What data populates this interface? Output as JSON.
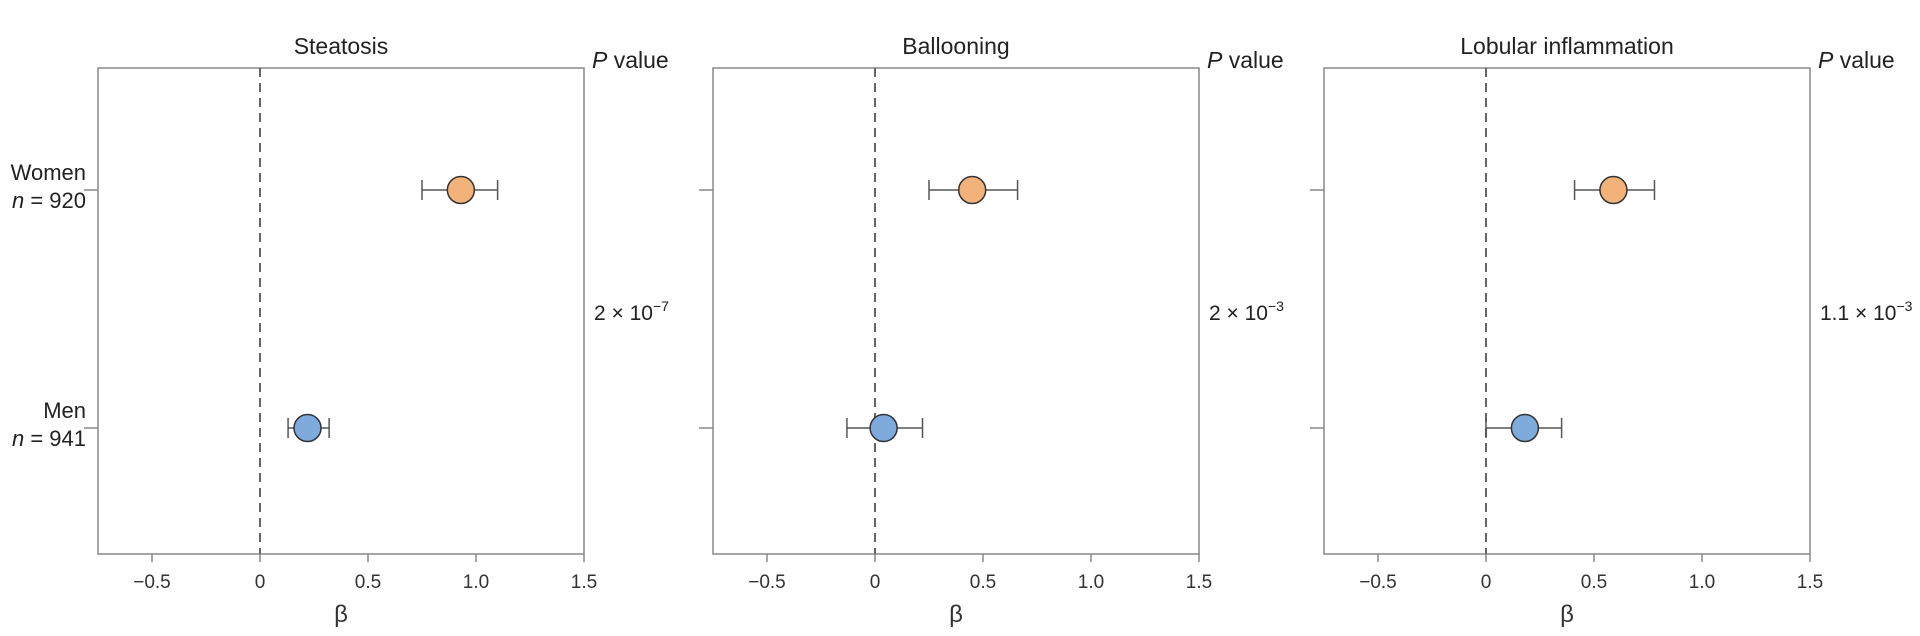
{
  "chart_data": [
    {
      "type": "forest",
      "title": "Steatosis",
      "xlabel": "β",
      "xlim": [
        -0.75,
        1.5
      ],
      "xticks": [
        -0.5,
        0,
        0.5,
        1.0,
        1.5
      ],
      "xtick_labels": [
        "−0.5",
        "0",
        "0.5",
        "1.0",
        "1.5"
      ],
      "reference_line": 0,
      "pvalue_header": {
        "italic": "P",
        "rest": " value"
      },
      "pvalue": {
        "mantissa": "2",
        "exponent": "−7"
      },
      "points": [
        {
          "group": "Women",
          "beta": 0.93,
          "ci_low": 0.75,
          "ci_high": 1.1,
          "color": "#f3b27a"
        },
        {
          "group": "Men",
          "beta": 0.22,
          "ci_low": 0.13,
          "ci_high": 0.32,
          "color": "#7faadc"
        }
      ]
    },
    {
      "type": "forest",
      "title": "Ballooning",
      "xlabel": "β",
      "xlim": [
        -0.75,
        1.5
      ],
      "xticks": [
        -0.5,
        0,
        0.5,
        1.0,
        1.5
      ],
      "xtick_labels": [
        "−0.5",
        "0",
        "0.5",
        "1.0",
        "1.5"
      ],
      "reference_line": 0,
      "pvalue_header": {
        "italic": "P",
        "rest": " value"
      },
      "pvalue": {
        "mantissa": "2",
        "exponent": "−3"
      },
      "points": [
        {
          "group": "Women",
          "beta": 0.45,
          "ci_low": 0.25,
          "ci_high": 0.66,
          "color": "#f3b27a"
        },
        {
          "group": "Men",
          "beta": 0.04,
          "ci_low": -0.13,
          "ci_high": 0.22,
          "color": "#7faadc"
        }
      ]
    },
    {
      "type": "forest",
      "title": "Lobular inflammation",
      "xlabel": "β",
      "xlim": [
        -0.75,
        1.5
      ],
      "xticks": [
        -0.5,
        0,
        0.5,
        1.0,
        1.5
      ],
      "xtick_labels": [
        "−0.5",
        "0",
        "0.5",
        "1.0",
        "1.5"
      ],
      "reference_line": 0,
      "pvalue_header": {
        "italic": "P",
        "rest": " value"
      },
      "pvalue": {
        "mantissa": "1.1",
        "exponent": "−3"
      },
      "points": [
        {
          "group": "Women",
          "beta": 0.59,
          "ci_low": 0.41,
          "ci_high": 0.78,
          "color": "#f3b27a"
        },
        {
          "group": "Men",
          "beta": 0.18,
          "ci_low": 0.0,
          "ci_high": 0.35,
          "color": "#7faadc"
        }
      ]
    }
  ],
  "groups": [
    {
      "name": "Women",
      "n_label": "n",
      "n_rest": " = 920"
    },
    {
      "name": "Men",
      "n_label": "n",
      "n_rest": " = 941"
    }
  ],
  "colors": {
    "women": "#f3b27a",
    "men": "#7faadc",
    "axis": "#888888"
  }
}
